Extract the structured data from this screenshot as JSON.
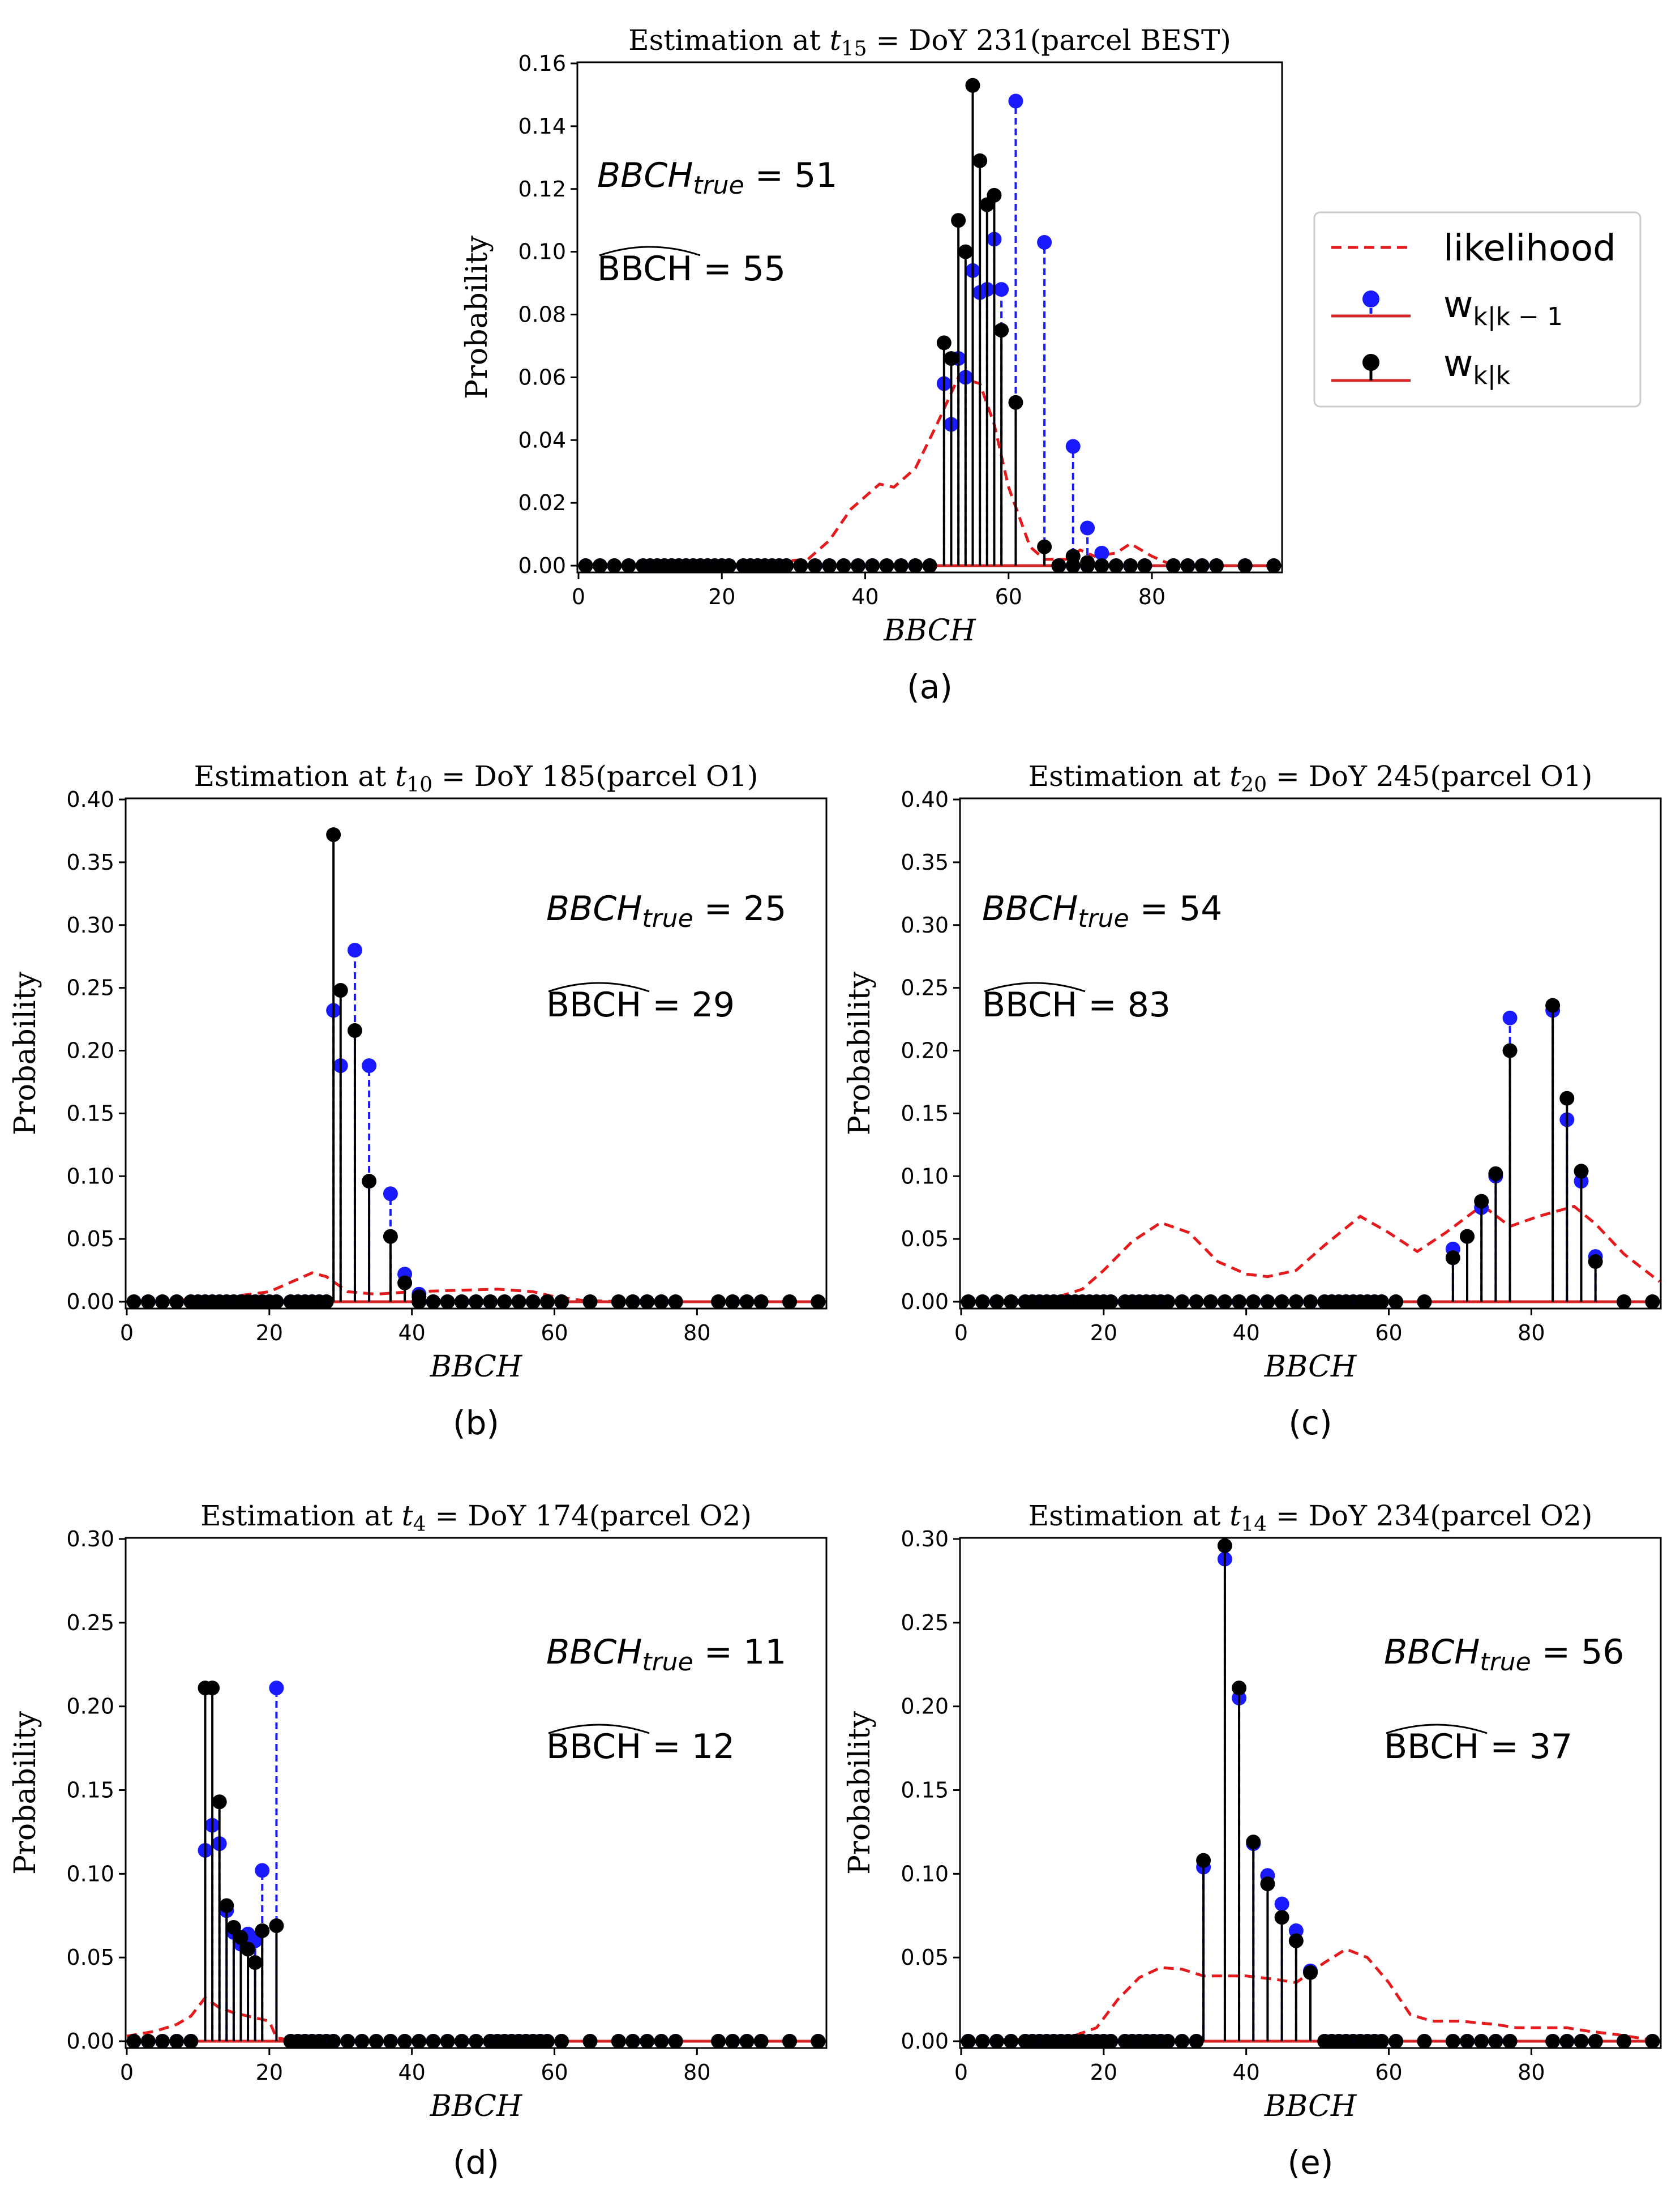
{
  "colors": {
    "likelihood": "#e41a1c",
    "prior": "#1a1aff",
    "posterior": "#000000",
    "baseline": "#d62728"
  },
  "legend": {
    "likelihood_label": "likelihood",
    "prior_label": "w",
    "prior_sub": "k|k − 1",
    "posterior_label": "w",
    "posterior_sub": "k|k"
  },
  "chart_data": [
    {
      "id": "a",
      "type": "stem",
      "title": "Estimation at t15 = DoY 231(parcel BEST)",
      "title_parts": {
        "prefix": "Estimation at ",
        "t": "t",
        "t_sub": "15",
        "suffix": " = DoY 231(parcel BEST)"
      },
      "xlabel": "BBCH",
      "ylabel": "Probability",
      "caption": "(a)",
      "xlim": [
        0,
        98
      ],
      "ylim": [
        0,
        0.16
      ],
      "xticks": [
        "0",
        "20",
        "40",
        "60",
        "80"
      ],
      "yticks": [
        "0.00",
        "0.02",
        "0.04",
        "0.06",
        "0.08",
        "0.10",
        "0.12",
        "0.14",
        "0.16"
      ],
      "bbch_true": "51",
      "bbch_hat": "55",
      "annotation": {
        "true_label": "BBCH",
        "true_sub": "true",
        "true_eq": " = 51",
        "hat_label": "BBCH",
        "hat_eq": " = 55"
      },
      "zero_x": [
        1,
        3,
        5,
        7,
        9,
        10,
        11,
        12,
        13,
        14,
        15,
        16,
        17,
        18,
        19,
        20,
        21,
        23,
        24,
        25,
        26,
        27,
        28,
        29,
        31,
        33,
        35,
        37,
        39,
        41,
        43,
        45,
        47,
        49,
        67,
        69,
        71,
        73,
        75,
        77,
        79,
        83,
        85,
        87,
        89,
        93,
        97
      ],
      "stems": [
        {
          "x": 51,
          "prior": 0.058,
          "post": 0.071
        },
        {
          "x": 52,
          "prior": 0.045,
          "post": 0.066
        },
        {
          "x": 53,
          "prior": 0.066,
          "post": 0.11
        },
        {
          "x": 54,
          "prior": 0.06,
          "post": 0.1
        },
        {
          "x": 55,
          "prior": 0.094,
          "post": 0.153
        },
        {
          "x": 56,
          "prior": 0.087,
          "post": 0.129
        },
        {
          "x": 57,
          "prior": 0.088,
          "post": 0.115
        },
        {
          "x": 58,
          "prior": 0.104,
          "post": 0.118
        },
        {
          "x": 59,
          "prior": 0.088,
          "post": 0.075
        },
        {
          "x": 61,
          "prior": 0.148,
          "post": 0.052
        },
        {
          "x": 65,
          "prior": 0.103,
          "post": 0.006
        },
        {
          "x": 69,
          "prior": 0.038,
          "post": 0.003
        },
        {
          "x": 71,
          "prior": 0.012,
          "post": 0.001
        },
        {
          "x": 73,
          "prior": 0.004,
          "post": 0.0
        }
      ],
      "likelihood": [
        [
          0,
          0
        ],
        [
          20,
          0
        ],
        [
          26,
          0.001
        ],
        [
          32,
          0.002
        ],
        [
          35,
          0.008
        ],
        [
          38,
          0.018
        ],
        [
          42,
          0.026
        ],
        [
          44,
          0.025
        ],
        [
          47,
          0.031
        ],
        [
          50,
          0.045
        ],
        [
          53,
          0.06
        ],
        [
          56,
          0.058
        ],
        [
          58,
          0.045
        ],
        [
          60,
          0.025
        ],
        [
          63,
          0.006
        ],
        [
          65,
          0.002
        ],
        [
          68,
          0.002
        ],
        [
          70,
          0.005
        ],
        [
          72,
          0.003
        ],
        [
          75,
          0.004
        ],
        [
          77,
          0.007
        ],
        [
          80,
          0.003
        ],
        [
          83,
          0.0
        ],
        [
          98,
          0
        ]
      ]
    },
    {
      "id": "b",
      "type": "stem",
      "title": "Estimation at t10 = DoY 185(parcel O1)",
      "title_parts": {
        "prefix": "Estimation at ",
        "t": "t",
        "t_sub": "10",
        "suffix": " = DoY 185(parcel O1)"
      },
      "xlabel": "BBCH",
      "ylabel": "Probability",
      "caption": "(b)",
      "xlim": [
        0,
        98
      ],
      "ylim": [
        0,
        0.4
      ],
      "xticks": [
        "0",
        "20",
        "40",
        "60",
        "80"
      ],
      "yticks": [
        "0.00",
        "0.05",
        "0.10",
        "0.15",
        "0.20",
        "0.25",
        "0.30",
        "0.35",
        "0.40"
      ],
      "bbch_true": "25",
      "bbch_hat": "29",
      "annotation": {
        "true_label": "BBCH",
        "true_sub": "true",
        "true_eq": " = 25",
        "hat_label": "BBCH",
        "hat_eq": " = 29"
      },
      "zero_x": [
        1,
        3,
        5,
        7,
        9,
        10,
        11,
        12,
        13,
        14,
        15,
        16,
        17,
        18,
        19,
        20,
        21,
        23,
        24,
        25,
        26,
        27,
        28,
        41,
        43,
        45,
        47,
        49,
        51,
        53,
        55,
        57,
        59,
        61,
        65,
        69,
        71,
        73,
        75,
        77,
        83,
        85,
        87,
        89,
        93,
        97
      ],
      "stems": [
        {
          "x": 29,
          "prior": 0.232,
          "post": 0.372
        },
        {
          "x": 30,
          "prior": 0.188,
          "post": 0.248
        },
        {
          "x": 32,
          "prior": 0.28,
          "post": 0.216
        },
        {
          "x": 34,
          "prior": 0.188,
          "post": 0.096
        },
        {
          "x": 37,
          "prior": 0.086,
          "post": 0.052
        },
        {
          "x": 39,
          "prior": 0.022,
          "post": 0.015
        },
        {
          "x": 41,
          "prior": 0.006,
          "post": 0.004
        }
      ],
      "likelihood": [
        [
          0,
          0
        ],
        [
          10,
          0.002
        ],
        [
          16,
          0.005
        ],
        [
          20,
          0.008
        ],
        [
          24,
          0.018
        ],
        [
          26,
          0.023
        ],
        [
          28,
          0.02
        ],
        [
          31,
          0.008
        ],
        [
          35,
          0.006
        ],
        [
          40,
          0.008
        ],
        [
          46,
          0.009
        ],
        [
          52,
          0.01
        ],
        [
          57,
          0.008
        ],
        [
          60,
          0.004
        ],
        [
          64,
          0.001
        ],
        [
          70,
          0
        ],
        [
          98,
          0
        ]
      ]
    },
    {
      "id": "c",
      "type": "stem",
      "title": "Estimation at t20 = DoY 245(parcel O1)",
      "title_parts": {
        "prefix": "Estimation at ",
        "t": "t",
        "t_sub": "20",
        "suffix": " = DoY 245(parcel O1)"
      },
      "xlabel": "BBCH",
      "ylabel": "Probability",
      "caption": "(c)",
      "xlim": [
        0,
        98
      ],
      "ylim": [
        0,
        0.4
      ],
      "xticks": [
        "0",
        "20",
        "40",
        "60",
        "80"
      ],
      "yticks": [
        "0.00",
        "0.05",
        "0.10",
        "0.15",
        "0.20",
        "0.25",
        "0.30",
        "0.35",
        "0.40"
      ],
      "bbch_true": "54",
      "bbch_hat": "83",
      "annotation": {
        "true_label": "BBCH",
        "true_sub": "true",
        "true_eq": " = 54",
        "hat_label": "BBCH",
        "hat_eq": " = 83"
      },
      "zero_x": [
        1,
        3,
        5,
        7,
        9,
        10,
        11,
        12,
        13,
        14,
        15,
        16,
        17,
        18,
        19,
        20,
        21,
        23,
        24,
        25,
        26,
        27,
        28,
        29,
        31,
        33,
        35,
        37,
        39,
        41,
        43,
        45,
        47,
        49,
        51,
        52,
        53,
        54,
        55,
        56,
        57,
        58,
        59,
        61,
        65,
        93,
        97
      ],
      "stems": [
        {
          "x": 69,
          "prior": 0.042,
          "post": 0.035
        },
        {
          "x": 71,
          "prior": 0.052,
          "post": 0.052
        },
        {
          "x": 73,
          "prior": 0.075,
          "post": 0.08
        },
        {
          "x": 75,
          "prior": 0.1,
          "post": 0.102
        },
        {
          "x": 77,
          "prior": 0.226,
          "post": 0.2
        },
        {
          "x": 83,
          "prior": 0.232,
          "post": 0.236
        },
        {
          "x": 85,
          "prior": 0.145,
          "post": 0.162
        },
        {
          "x": 87,
          "prior": 0.096,
          "post": 0.104
        },
        {
          "x": 89,
          "prior": 0.036,
          "post": 0.032
        }
      ],
      "likelihood": [
        [
          0,
          0
        ],
        [
          12,
          0.001
        ],
        [
          17,
          0.01
        ],
        [
          20,
          0.025
        ],
        [
          24,
          0.048
        ],
        [
          28,
          0.063
        ],
        [
          32,
          0.055
        ],
        [
          36,
          0.032
        ],
        [
          40,
          0.022
        ],
        [
          43,
          0.02
        ],
        [
          47,
          0.025
        ],
        [
          51,
          0.045
        ],
        [
          56,
          0.068
        ],
        [
          60,
          0.055
        ],
        [
          64,
          0.04
        ],
        [
          68,
          0.055
        ],
        [
          72,
          0.072
        ],
        [
          74,
          0.073
        ],
        [
          77,
          0.06
        ],
        [
          81,
          0.068
        ],
        [
          86,
          0.076
        ],
        [
          89,
          0.062
        ],
        [
          93,
          0.038
        ],
        [
          98,
          0.016
        ]
      ]
    },
    {
      "id": "d",
      "type": "stem",
      "title": "Estimation at t4 = DoY 174(parcel O2)",
      "title_parts": {
        "prefix": "Estimation at ",
        "t": "t",
        "t_sub": "4",
        "suffix": " = DoY 174(parcel O2)"
      },
      "xlabel": "BBCH",
      "ylabel": "Probability",
      "caption": "(d)",
      "xlim": [
        0,
        98
      ],
      "ylim": [
        0,
        0.3
      ],
      "xticks": [
        "0",
        "20",
        "40",
        "60",
        "80"
      ],
      "yticks": [
        "0.00",
        "0.05",
        "0.10",
        "0.15",
        "0.20",
        "0.25",
        "0.30"
      ],
      "bbch_true": "11",
      "bbch_hat": "12",
      "annotation": {
        "true_label": "BBCH",
        "true_sub": "true",
        "true_eq": " = 11",
        "hat_label": "BBCH",
        "hat_eq": " = 12"
      },
      "zero_x": [
        1,
        3,
        5,
        7,
        9,
        23,
        24,
        25,
        26,
        27,
        28,
        29,
        31,
        33,
        35,
        37,
        39,
        41,
        43,
        45,
        47,
        49,
        51,
        52,
        53,
        54,
        55,
        56,
        57,
        58,
        59,
        61,
        65,
        69,
        71,
        73,
        75,
        77,
        83,
        85,
        87,
        89,
        93,
        97
      ],
      "stems": [
        {
          "x": 11,
          "prior": 0.114,
          "post": 0.211
        },
        {
          "x": 12,
          "prior": 0.129,
          "post": 0.211
        },
        {
          "x": 13,
          "prior": 0.118,
          "post": 0.143
        },
        {
          "x": 14,
          "prior": 0.078,
          "post": 0.081
        },
        {
          "x": 15,
          "prior": 0.065,
          "post": 0.068
        },
        {
          "x": 16,
          "prior": 0.058,
          "post": 0.062
        },
        {
          "x": 17,
          "prior": 0.064,
          "post": 0.055
        },
        {
          "x": 18,
          "prior": 0.06,
          "post": 0.047
        },
        {
          "x": 19,
          "prior": 0.102,
          "post": 0.066
        },
        {
          "x": 21,
          "prior": 0.211,
          "post": 0.069
        }
      ],
      "likelihood": [
        [
          0,
          0.003
        ],
        [
          4,
          0.006
        ],
        [
          7,
          0.01
        ],
        [
          9,
          0.015
        ],
        [
          11,
          0.026
        ],
        [
          13,
          0.02
        ],
        [
          15,
          0.017
        ],
        [
          18,
          0.014
        ],
        [
          20,
          0.012
        ],
        [
          21,
          0.002
        ],
        [
          24,
          0
        ],
        [
          98,
          0
        ]
      ]
    },
    {
      "id": "e",
      "type": "stem",
      "title": "Estimation at t14 = DoY 234(parcel O2)",
      "title_parts": {
        "prefix": "Estimation at ",
        "t": "t",
        "t_sub": "14",
        "suffix": " = DoY 234(parcel O2)"
      },
      "xlabel": "BBCH",
      "ylabel": "Probability",
      "caption": "(e)",
      "xlim": [
        0,
        98
      ],
      "ylim": [
        0,
        0.3
      ],
      "xticks": [
        "0",
        "20",
        "40",
        "60",
        "80"
      ],
      "yticks": [
        "0.00",
        "0.05",
        "0.10",
        "0.15",
        "0.20",
        "0.25",
        "0.30"
      ],
      "bbch_true": "56",
      "bbch_hat": "37",
      "annotation": {
        "true_label": "BBCH",
        "true_sub": "true",
        "true_eq": " = 56",
        "hat_label": "BBCH",
        "hat_eq": " = 37"
      },
      "zero_x": [
        1,
        3,
        5,
        7,
        9,
        10,
        11,
        12,
        13,
        14,
        15,
        16,
        17,
        18,
        19,
        20,
        21,
        23,
        24,
        25,
        26,
        27,
        28,
        29,
        31,
        33,
        51,
        52,
        53,
        54,
        55,
        56,
        57,
        58,
        59,
        61,
        65,
        69,
        71,
        73,
        75,
        77,
        83,
        85,
        87,
        89,
        93,
        97
      ],
      "stems": [
        {
          "x": 34,
          "prior": 0.104,
          "post": 0.108
        },
        {
          "x": 37,
          "prior": 0.288,
          "post": 0.296
        },
        {
          "x": 39,
          "prior": 0.205,
          "post": 0.211
        },
        {
          "x": 41,
          "prior": 0.118,
          "post": 0.119
        },
        {
          "x": 43,
          "prior": 0.099,
          "post": 0.094
        },
        {
          "x": 45,
          "prior": 0.082,
          "post": 0.074
        },
        {
          "x": 47,
          "prior": 0.066,
          "post": 0.06
        },
        {
          "x": 49,
          "prior": 0.042,
          "post": 0.041
        }
      ],
      "likelihood": [
        [
          0,
          0
        ],
        [
          15,
          0.002
        ],
        [
          19,
          0.008
        ],
        [
          22,
          0.025
        ],
        [
          25,
          0.038
        ],
        [
          28,
          0.044
        ],
        [
          31,
          0.043
        ],
        [
          34,
          0.039
        ],
        [
          40,
          0.039
        ],
        [
          44,
          0.037
        ],
        [
          47,
          0.035
        ],
        [
          51,
          0.047
        ],
        [
          54,
          0.055
        ],
        [
          57,
          0.05
        ],
        [
          60,
          0.035
        ],
        [
          63,
          0.016
        ],
        [
          66,
          0.012
        ],
        [
          70,
          0.012
        ],
        [
          75,
          0.01
        ],
        [
          78,
          0.008
        ],
        [
          85,
          0.008
        ],
        [
          88,
          0.006
        ],
        [
          92,
          0.004
        ],
        [
          95,
          0.002
        ],
        [
          98,
          0
        ]
      ]
    }
  ]
}
